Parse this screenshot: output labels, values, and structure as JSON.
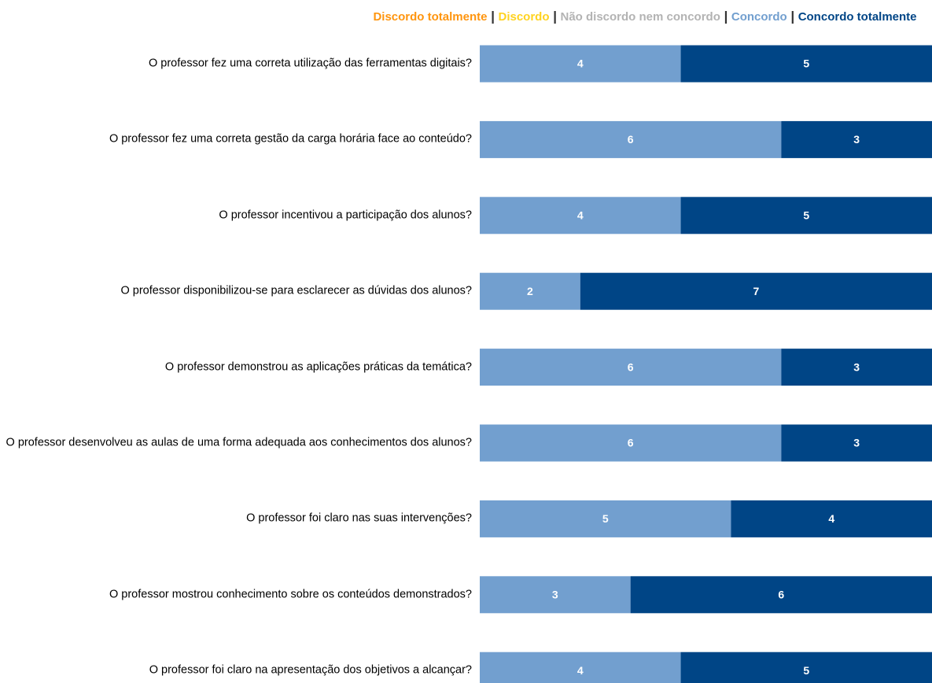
{
  "chart_data": {
    "type": "stacked_bar_horizontal",
    "categories": [
      "O professor fez uma correta utilização das ferramentas digitais?",
      "O professor fez uma correta gestão da carga horária face ao conteúdo?",
      "O professor incentivou a participação dos alunos?",
      "O professor disponibilizou-se para esclarecer as dúvidas dos alunos?",
      "O professor demonstrou as aplicações práticas da temática?",
      "O professor desenvolveu as aulas de uma forma adequada aos conhecimentos dos alunos?",
      "O professor foi claro nas suas intervenções?",
      "O professor mostrou conhecimento sobre os conteúdos demonstrados?",
      "O professor foi claro na apresentação dos objetivos a alcançar?"
    ],
    "series": [
      {
        "name": "Discordo totalmente",
        "color": "#ff950e",
        "values": [
          0,
          0,
          0,
          0,
          0,
          0,
          0,
          0,
          0
        ]
      },
      {
        "name": "Discordo",
        "color": "#ffd320",
        "values": [
          0,
          0,
          0,
          0,
          0,
          0,
          0,
          0,
          0
        ]
      },
      {
        "name": "Não discordo nem concordo",
        "color": "#b3b3b3",
        "values": [
          0,
          0,
          0,
          0,
          0,
          0,
          0,
          0,
          0
        ]
      },
      {
        "name": "Concordo",
        "color": "#729fcf",
        "values": [
          4,
          6,
          4,
          2,
          6,
          6,
          5,
          3,
          4
        ]
      },
      {
        "name": "Concordo totalmente",
        "color": "#004586",
        "values": [
          5,
          3,
          5,
          7,
          3,
          3,
          4,
          6,
          5
        ]
      }
    ],
    "xlim": [
      0,
      9
    ],
    "legend": "top"
  }
}
